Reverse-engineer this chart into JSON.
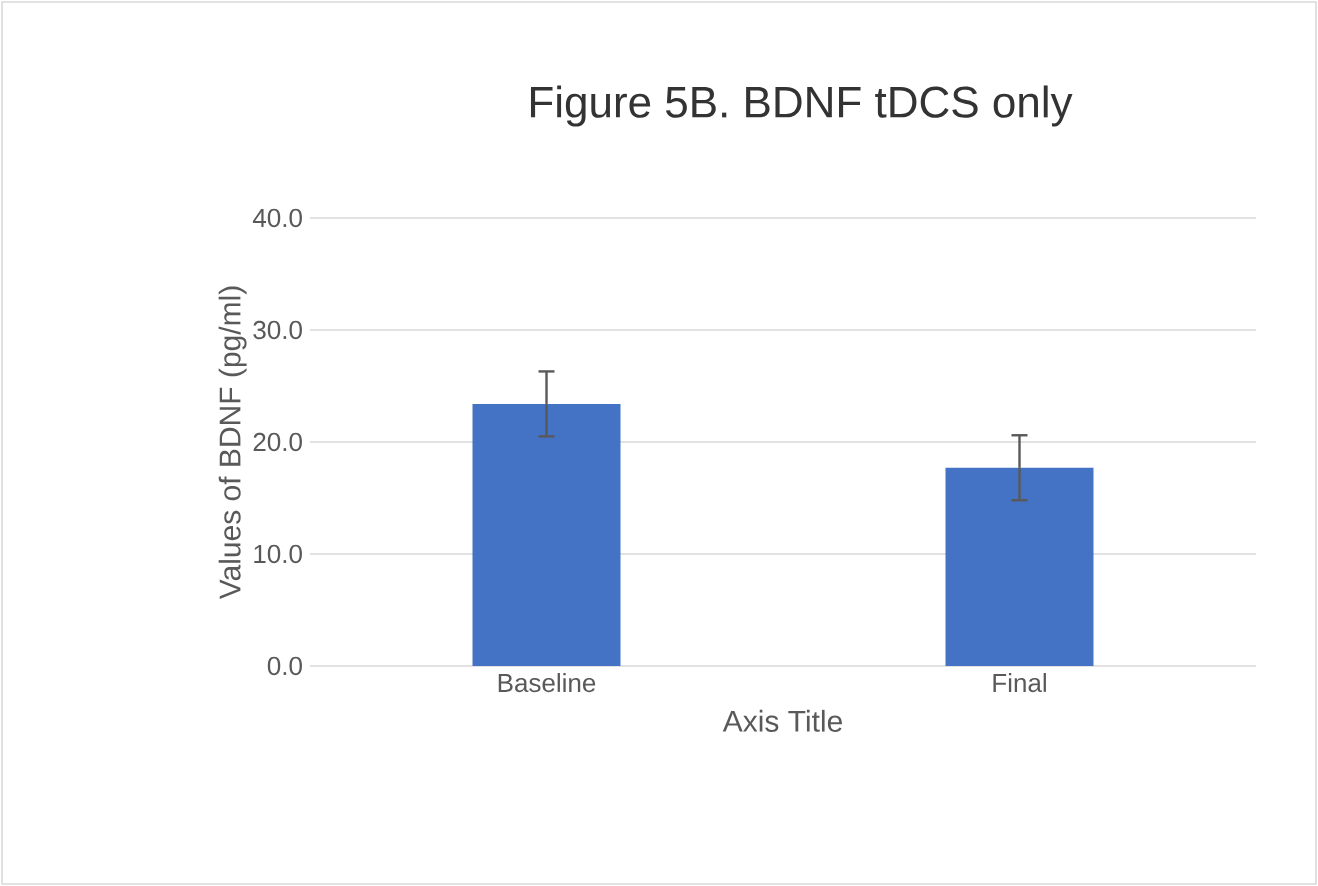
{
  "chart_data": {
    "type": "bar",
    "title": "Figure 5B. BDNF tDCS only",
    "xlabel": "Axis Title",
    "ylabel": "Values of BDNF (pg/ml)",
    "categories": [
      "Baseline",
      "Final"
    ],
    "values": [
      23.4,
      17.7
    ],
    "errors": [
      2.9,
      2.9
    ],
    "color": "#4472c4",
    "ylim": [
      0,
      40
    ],
    "yticks": [
      {
        "value": 0,
        "label": "0.0"
      },
      {
        "value": 10,
        "label": "10.0"
      },
      {
        "value": 20,
        "label": "20.0"
      },
      {
        "value": 30,
        "label": "30.0"
      },
      {
        "value": 40,
        "label": "40.0"
      }
    ],
    "grid": "y"
  }
}
